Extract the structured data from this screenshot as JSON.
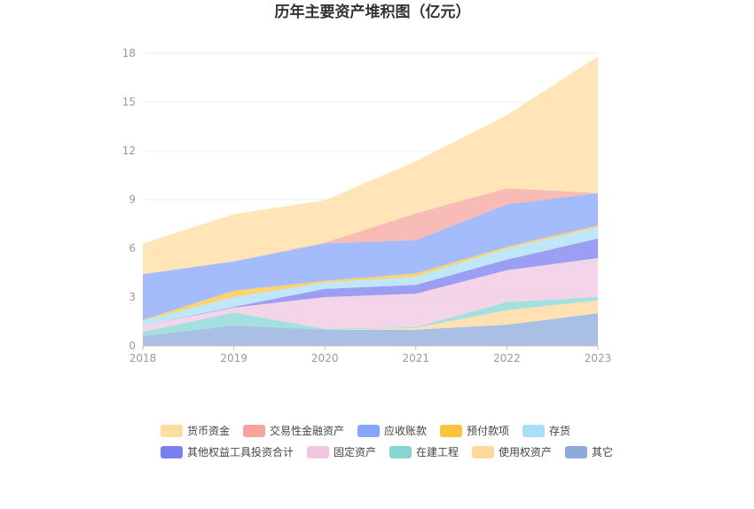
{
  "chart_data": {
    "type": "area",
    "stacked": true,
    "title": "历年主要资产堆积图（亿元）",
    "x": [
      "2018",
      "2019",
      "2020",
      "2021",
      "2022",
      "2023"
    ],
    "ylim": [
      0,
      18
    ],
    "yticks": [
      0,
      3,
      6,
      9,
      12,
      15,
      18
    ],
    "grid": true,
    "legend_position": "bottom",
    "series": [
      {
        "name": "其它",
        "color": "#8eaadb",
        "values": [
          0.6,
          1.25,
          1.0,
          1.0,
          1.3,
          2.0
        ]
      },
      {
        "name": "使用权资产",
        "color": "#ffd79a",
        "values": [
          0,
          0,
          0,
          0.1,
          0.9,
          0.8
        ]
      },
      {
        "name": "在建工程",
        "color": "#86d5d5",
        "values": [
          0.25,
          0.8,
          0.05,
          0.05,
          0.5,
          0.2
        ]
      },
      {
        "name": "固定资产",
        "color": "#f0c6e0",
        "values": [
          0.4,
          0.3,
          1.95,
          2.05,
          1.95,
          2.4
        ]
      },
      {
        "name": "其他权益工具投资合计",
        "color": "#7b7ef0",
        "values": [
          0,
          0.05,
          0.5,
          0.55,
          0.65,
          1.2
        ]
      },
      {
        "name": "存货",
        "color": "#a9def7",
        "values": [
          0.3,
          0.6,
          0.4,
          0.5,
          0.7,
          0.7
        ]
      },
      {
        "name": "预付款项",
        "color": "#fbc43c",
        "values": [
          0.05,
          0.4,
          0.1,
          0.2,
          0.1,
          0.1
        ]
      },
      {
        "name": "应收账款",
        "color": "#86a6fa",
        "values": [
          2.8,
          1.8,
          2.3,
          2.05,
          2.6,
          2.0
        ]
      },
      {
        "name": "交易性金融资产",
        "color": "#f5a49c",
        "values": [
          0,
          0,
          0.05,
          1.65,
          1.0,
          0
        ]
      },
      {
        "name": "货币资金",
        "color": "#ffdca0",
        "values": [
          1.9,
          2.9,
          2.6,
          3.2,
          4.5,
          8.4
        ]
      }
    ],
    "legend_order": [
      "货币资金",
      "交易性金融资产",
      "应收账款",
      "预付款项",
      "存货",
      "其他权益工具投资合计",
      "固定资产",
      "在建工程",
      "使用权资产",
      "其它"
    ]
  }
}
